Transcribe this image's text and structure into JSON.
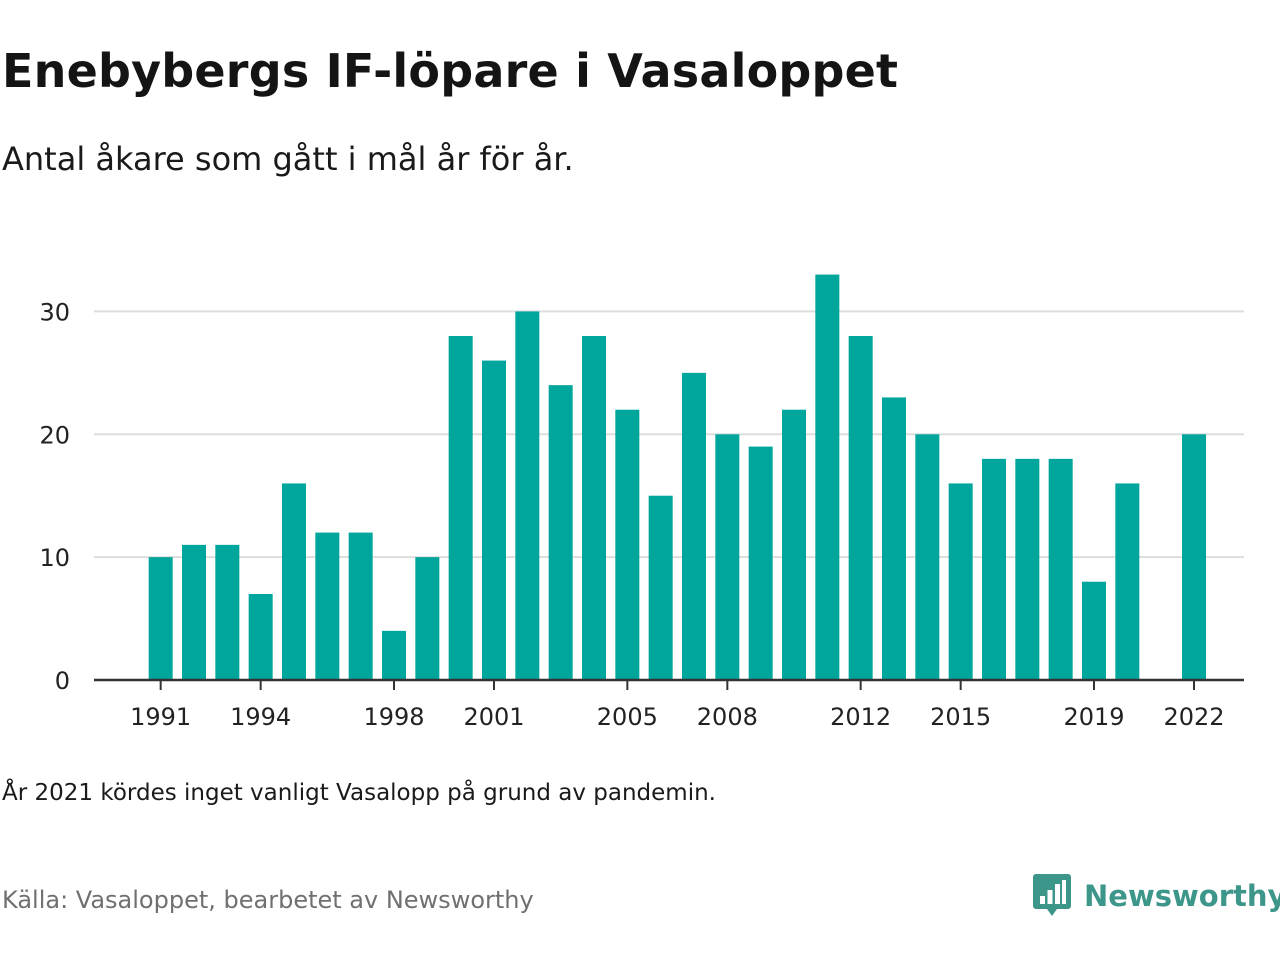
{
  "title": "Enebybergs IF-löpare i Vasaloppet",
  "subtitle": "Antal åkare som gått i mål år för år.",
  "note": "År 2021 kördes inget vanligt Vasalopp på grund av pandemin.",
  "source": "Källa: Vasaloppet, bearbetet av Newsworthy",
  "brand": {
    "name": "Newsworthy",
    "icon": "newsworthy-logo-icon",
    "color": "#3d968a"
  },
  "colors": {
    "bar": "#00a59b",
    "grid": "#dddddd",
    "axis": "#333333",
    "text": "#222222"
  },
  "chart_data": {
    "type": "bar",
    "x": [
      1991,
      1992,
      1993,
      1994,
      1995,
      1996,
      1997,
      1998,
      1999,
      2000,
      2001,
      2002,
      2003,
      2004,
      2005,
      2006,
      2007,
      2008,
      2009,
      2010,
      2011,
      2012,
      2013,
      2014,
      2015,
      2016,
      2017,
      2018,
      2019,
      2020,
      2022
    ],
    "values": [
      10,
      11,
      11,
      7,
      16,
      12,
      12,
      4,
      10,
      28,
      26,
      30,
      24,
      28,
      22,
      15,
      25,
      20,
      19,
      22,
      33,
      28,
      23,
      20,
      16,
      18,
      18,
      18,
      8,
      16,
      20
    ],
    "x_ticks": [
      "1991",
      "1994",
      "1998",
      "2001",
      "2005",
      "2008",
      "2012",
      "2015",
      "2019",
      "2022"
    ],
    "y_ticks": [
      "0",
      "10",
      "20",
      "30"
    ],
    "xlim": [
      1989,
      2023.5
    ],
    "ylim": [
      0,
      35
    ],
    "grid": true,
    "xlabel": "",
    "ylabel": ""
  }
}
